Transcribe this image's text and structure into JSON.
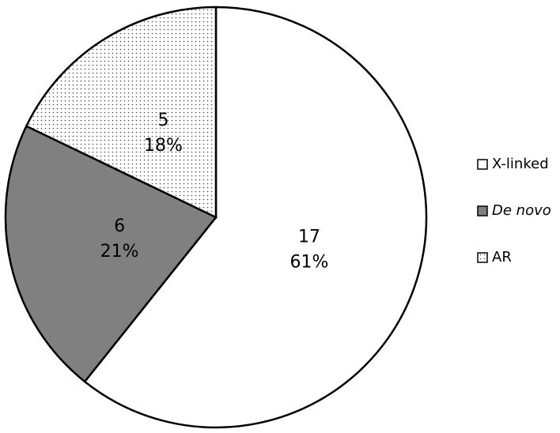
{
  "chart_data": {
    "type": "pie",
    "categories": [
      "X-linked",
      "De novo",
      "AR"
    ],
    "values": [
      17,
      6,
      5
    ],
    "percent_labels": [
      "61%",
      "21%",
      "18%"
    ],
    "colors": [
      "#ffffff",
      "#808080",
      "#ffffff"
    ],
    "patterns": [
      "none",
      "none",
      "dots"
    ],
    "legend_styles": [
      "normal",
      "italic",
      "normal"
    ],
    "legend": "right"
  }
}
